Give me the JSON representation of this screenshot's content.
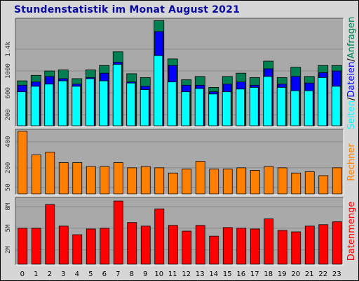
{
  "title": "Stundenstatistik im Monat August 2021",
  "colors": {
    "background": "#d6d6d6",
    "panel": "#a9a9a9",
    "title": "#0a0aa0",
    "seiten": "#00ffff",
    "dateien": "#0000ff",
    "anfragen": "#008050",
    "rechner": "#ff8000",
    "datenmenge": "#ff0000"
  },
  "chart_data": [
    {
      "type": "bar",
      "name": "hits",
      "categories": [
        "0",
        "1",
        "2",
        "3",
        "4",
        "5",
        "6",
        "7",
        "8",
        "9",
        "10",
        "11",
        "12",
        "13",
        "14",
        "15",
        "16",
        "17",
        "18",
        "19",
        "20",
        "21",
        "22",
        "23"
      ],
      "series": [
        {
          "name": "Anfragen",
          "values": [
            820,
            920,
            1000,
            1020,
            860,
            1020,
            1100,
            1350,
            950,
            880,
            1920,
            1220,
            840,
            900,
            700,
            900,
            960,
            880,
            1180,
            880,
            1070,
            900,
            1100,
            1100
          ]
        },
        {
          "name": "Dateien",
          "values": [
            740,
            800,
            900,
            860,
            760,
            880,
            960,
            1160,
            800,
            720,
            1720,
            1100,
            740,
            740,
            620,
            760,
            800,
            740,
            1040,
            760,
            900,
            780,
            970,
            1000
          ]
        },
        {
          "name": "Seiten",
          "values": [
            620,
            720,
            760,
            820,
            720,
            860,
            820,
            1120,
            780,
            660,
            1280,
            800,
            620,
            680,
            580,
            620,
            670,
            700,
            900,
            700,
            640,
            640,
            880,
            720
          ]
        }
      ],
      "ytick_labels": [
        "200",
        "600",
        "1000",
        "1.4k"
      ],
      "ylim": [
        0,
        1950
      ],
      "legend": [
        "Seiten",
        "/",
        "Dateien",
        "/",
        "Anfragen"
      ]
    },
    {
      "type": "bar",
      "name": "rechner",
      "categories": [
        "0",
        "1",
        "2",
        "3",
        "4",
        "5",
        "6",
        "7",
        "8",
        "9",
        "10",
        "11",
        "12",
        "13",
        "14",
        "15",
        "16",
        "17",
        "18",
        "19",
        "20",
        "21",
        "22",
        "23"
      ],
      "series": [
        {
          "name": "Rechner",
          "values": [
            480,
            300,
            320,
            240,
            240,
            210,
            210,
            240,
            200,
            210,
            200,
            160,
            190,
            250,
            190,
            190,
            200,
            180,
            210,
            200,
            160,
            170,
            140,
            200
          ]
        }
      ],
      "ytick_labels": [
        "50",
        "200",
        "400"
      ],
      "ylim": [
        0,
        490
      ],
      "legend": [
        "Rechner"
      ]
    },
    {
      "type": "bar",
      "name": "datenmenge",
      "categories": [
        "0",
        "1",
        "2",
        "3",
        "4",
        "5",
        "6",
        "7",
        "8",
        "9",
        "10",
        "11",
        "12",
        "13",
        "14",
        "15",
        "16",
        "17",
        "18",
        "19",
        "20",
        "21",
        "22",
        "23"
      ],
      "series": [
        {
          "name": "Datenmenge",
          "values": [
            5.0,
            5.0,
            8.3,
            5.3,
            4.1,
            4.9,
            5.0,
            8.8,
            5.8,
            5.3,
            7.7,
            5.4,
            4.6,
            5.4,
            3.9,
            5.1,
            5.0,
            4.9,
            6.3,
            4.7,
            4.5,
            5.3,
            5.5,
            5.9
          ]
        }
      ],
      "ytick_labels": [
        "2M",
        "5M",
        "8M"
      ],
      "ylim": [
        0,
        9.2
      ],
      "legend": [
        "Datenmenge"
      ]
    }
  ]
}
